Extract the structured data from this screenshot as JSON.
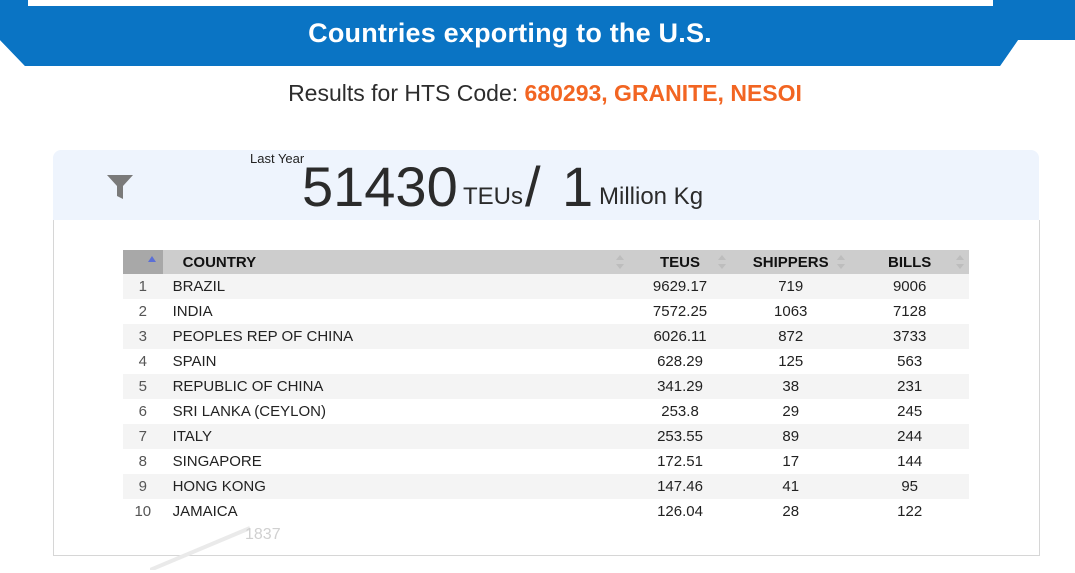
{
  "header": {
    "title": "Countries exporting to the U.S.",
    "brand_color": "#0a74c4"
  },
  "subtitle": {
    "label": "Results for HTS Code: ",
    "code": "680293, GRANITE, NESOI",
    "code_color": "#f26522"
  },
  "summary": {
    "period_label": "Last Year",
    "teus_value": "51430",
    "teus_unit": "TEUs",
    "separator": "/",
    "weight_value": "1",
    "weight_unit": "Million Kg",
    "filter_icon": "filter-icon"
  },
  "table": {
    "columns": [
      "COUNTRY",
      "TEUS",
      "SHIPPERS",
      "BILLS"
    ],
    "rows": [
      {
        "idx": "1",
        "country": "BRAZIL",
        "teus": "9629.17",
        "shippers": "719",
        "bills": "9006"
      },
      {
        "idx": "2",
        "country": "INDIA",
        "teus": "7572.25",
        "shippers": "1063",
        "bills": "7128"
      },
      {
        "idx": "3",
        "country": "PEOPLES REP OF CHINA",
        "teus": "6026.11",
        "shippers": "872",
        "bills": "3733"
      },
      {
        "idx": "4",
        "country": "SPAIN",
        "teus": "628.29",
        "shippers": "125",
        "bills": "563"
      },
      {
        "idx": "5",
        "country": "REPUBLIC OF CHINA",
        "teus": "341.29",
        "shippers": "38",
        "bills": "231"
      },
      {
        "idx": "6",
        "country": "SRI LANKA (CEYLON)",
        "teus": "253.8",
        "shippers": "29",
        "bills": "245"
      },
      {
        "idx": "7",
        "country": "ITALY",
        "teus": "253.55",
        "shippers": "89",
        "bills": "244"
      },
      {
        "idx": "8",
        "country": "SINGAPORE",
        "teus": "172.51",
        "shippers": "17",
        "bills": "144"
      },
      {
        "idx": "9",
        "country": "HONG KONG",
        "teus": "147.46",
        "shippers": "41",
        "bills": "95"
      },
      {
        "idx": "10",
        "country": "JAMAICA",
        "teus": "126.04",
        "shippers": "28",
        "bills": "122"
      }
    ]
  },
  "background_label": "1837"
}
